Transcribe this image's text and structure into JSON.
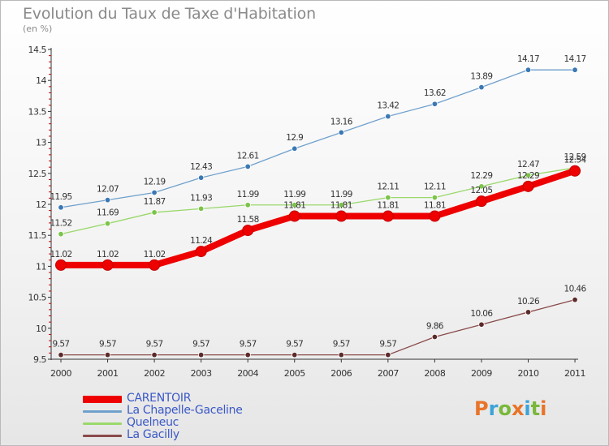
{
  "header": {
    "title": "Evolution du Taux de Taxe d'Habitation",
    "subtitle": "(en %)"
  },
  "brand": {
    "letters": [
      "P",
      "r",
      "o",
      "x",
      "i",
      "t",
      "i"
    ],
    "colors": [
      "#e8742a",
      "#3da3d8",
      "#79b83a",
      "#e8742a",
      "#3da3d8",
      "#79b83a",
      "#e8742a"
    ]
  },
  "chart_data": {
    "type": "line",
    "title": "Evolution du Taux de Taxe d'Habitation",
    "ylabel": "(en %)",
    "xlabel": "",
    "x": [
      "2000",
      "2001",
      "2002",
      "2003",
      "2004",
      "2005",
      "2006",
      "2007",
      "2008",
      "2009",
      "2010",
      "2011"
    ],
    "ylim": [
      9.5,
      14.5
    ],
    "yticks": [
      "9.5",
      "10",
      "10.5",
      "11",
      "11.5",
      "12",
      "12.5",
      "13",
      "13.5",
      "14",
      "14.5"
    ],
    "grid": false,
    "legend_position": "bottom-left",
    "series": [
      {
        "name": "CARENTOIR",
        "color": "#ee0000",
        "emphasis": true,
        "values": [
          11.02,
          11.02,
          11.02,
          11.24,
          11.58,
          11.81,
          11.81,
          11.81,
          11.81,
          12.05,
          12.29,
          12.54
        ],
        "labels": [
          "11.02",
          "11.02",
          "11.02",
          "11.24",
          "11.58",
          "11.81",
          "11.81",
          "11.81",
          "11.81",
          "12.05",
          "12.29",
          "12.54"
        ]
      },
      {
        "name": "La Chapelle-Gaceline",
        "color": "#6fa0cc",
        "marker": "#3b78b4",
        "values": [
          11.95,
          12.07,
          12.19,
          12.43,
          12.61,
          12.9,
          13.16,
          13.42,
          13.62,
          13.89,
          14.17,
          14.17
        ],
        "labels": [
          "11.95",
          "12.07",
          "12.19",
          "12.43",
          "12.61",
          "12.9",
          "13.16",
          "13.42",
          "13.62",
          "13.89",
          "14.17",
          "14.17"
        ]
      },
      {
        "name": "Quelneuc",
        "color": "#9ad86a",
        "marker": "#7cc34a",
        "values": [
          11.52,
          11.69,
          11.87,
          11.93,
          11.99,
          11.99,
          11.99,
          12.11,
          12.11,
          12.29,
          12.47,
          12.59
        ],
        "labels": [
          "11.52",
          "11.69",
          "11.87",
          "11.93",
          "11.99",
          "11.99",
          "11.99",
          "12.11",
          "12.11",
          "12.29",
          "12.47",
          "12.59"
        ]
      },
      {
        "name": "La Gacilly",
        "color": "#8a4a4a",
        "marker": "#5c2a2a",
        "values": [
          9.57,
          9.57,
          9.57,
          9.57,
          9.57,
          9.57,
          9.57,
          9.57,
          9.86,
          10.06,
          10.26,
          10.46
        ],
        "labels": [
          "9.57",
          "9.57",
          "9.57",
          "9.57",
          "9.57",
          "9.57",
          "9.57",
          "9.57",
          "9.86",
          "10.06",
          "10.26",
          "10.46"
        ]
      }
    ]
  }
}
